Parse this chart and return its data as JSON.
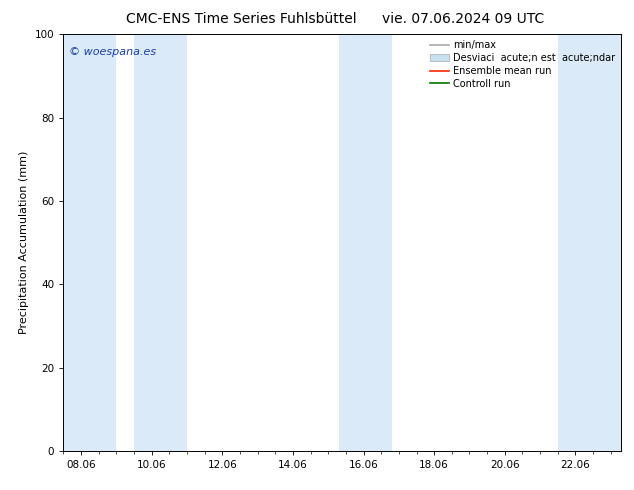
{
  "title_left": "CMC-ENS Time Series Fuhlsbüttel",
  "title_right": "vie. 07.06.2024 09 UTC",
  "ylabel": "Precipitation Accumulation (mm)",
  "ylim": [
    0,
    100
  ],
  "yticks": [
    0,
    20,
    40,
    60,
    80,
    100
  ],
  "xtick_labels": [
    "08.06",
    "10.06",
    "12.06",
    "14.06",
    "16.06",
    "18.06",
    "20.06",
    "22.06"
  ],
  "xtick_positions": [
    0,
    2,
    4,
    6,
    8,
    10,
    12,
    14
  ],
  "xlim": [
    -0.5,
    15.3
  ],
  "watermark": "© woespana.es",
  "watermark_color": "#1a3faa",
  "bg_color": "#ffffff",
  "plot_bg_color": "#ffffff",
  "shaded_regions": [
    [
      -0.5,
      1.0
    ],
    [
      1.5,
      3.0
    ],
    [
      7.3,
      8.8
    ],
    [
      13.5,
      15.3
    ]
  ],
  "shaded_color": "#daeaf8",
  "legend_min_max_color": "#aaaaaa",
  "legend_std_color": "#c8dff0",
  "legend_mean_color": "#ff2200",
  "legend_control_color": "#007700",
  "legend_label_min_max": "min/max",
  "legend_label_std": "Desviaci  acute;n est  acute;ndar",
  "legend_label_mean": "Ensemble mean run",
  "legend_label_control": "Controll run",
  "title_fontsize": 10,
  "axis_label_fontsize": 8,
  "tick_fontsize": 7.5,
  "legend_fontsize": 7,
  "watermark_fontsize": 8
}
